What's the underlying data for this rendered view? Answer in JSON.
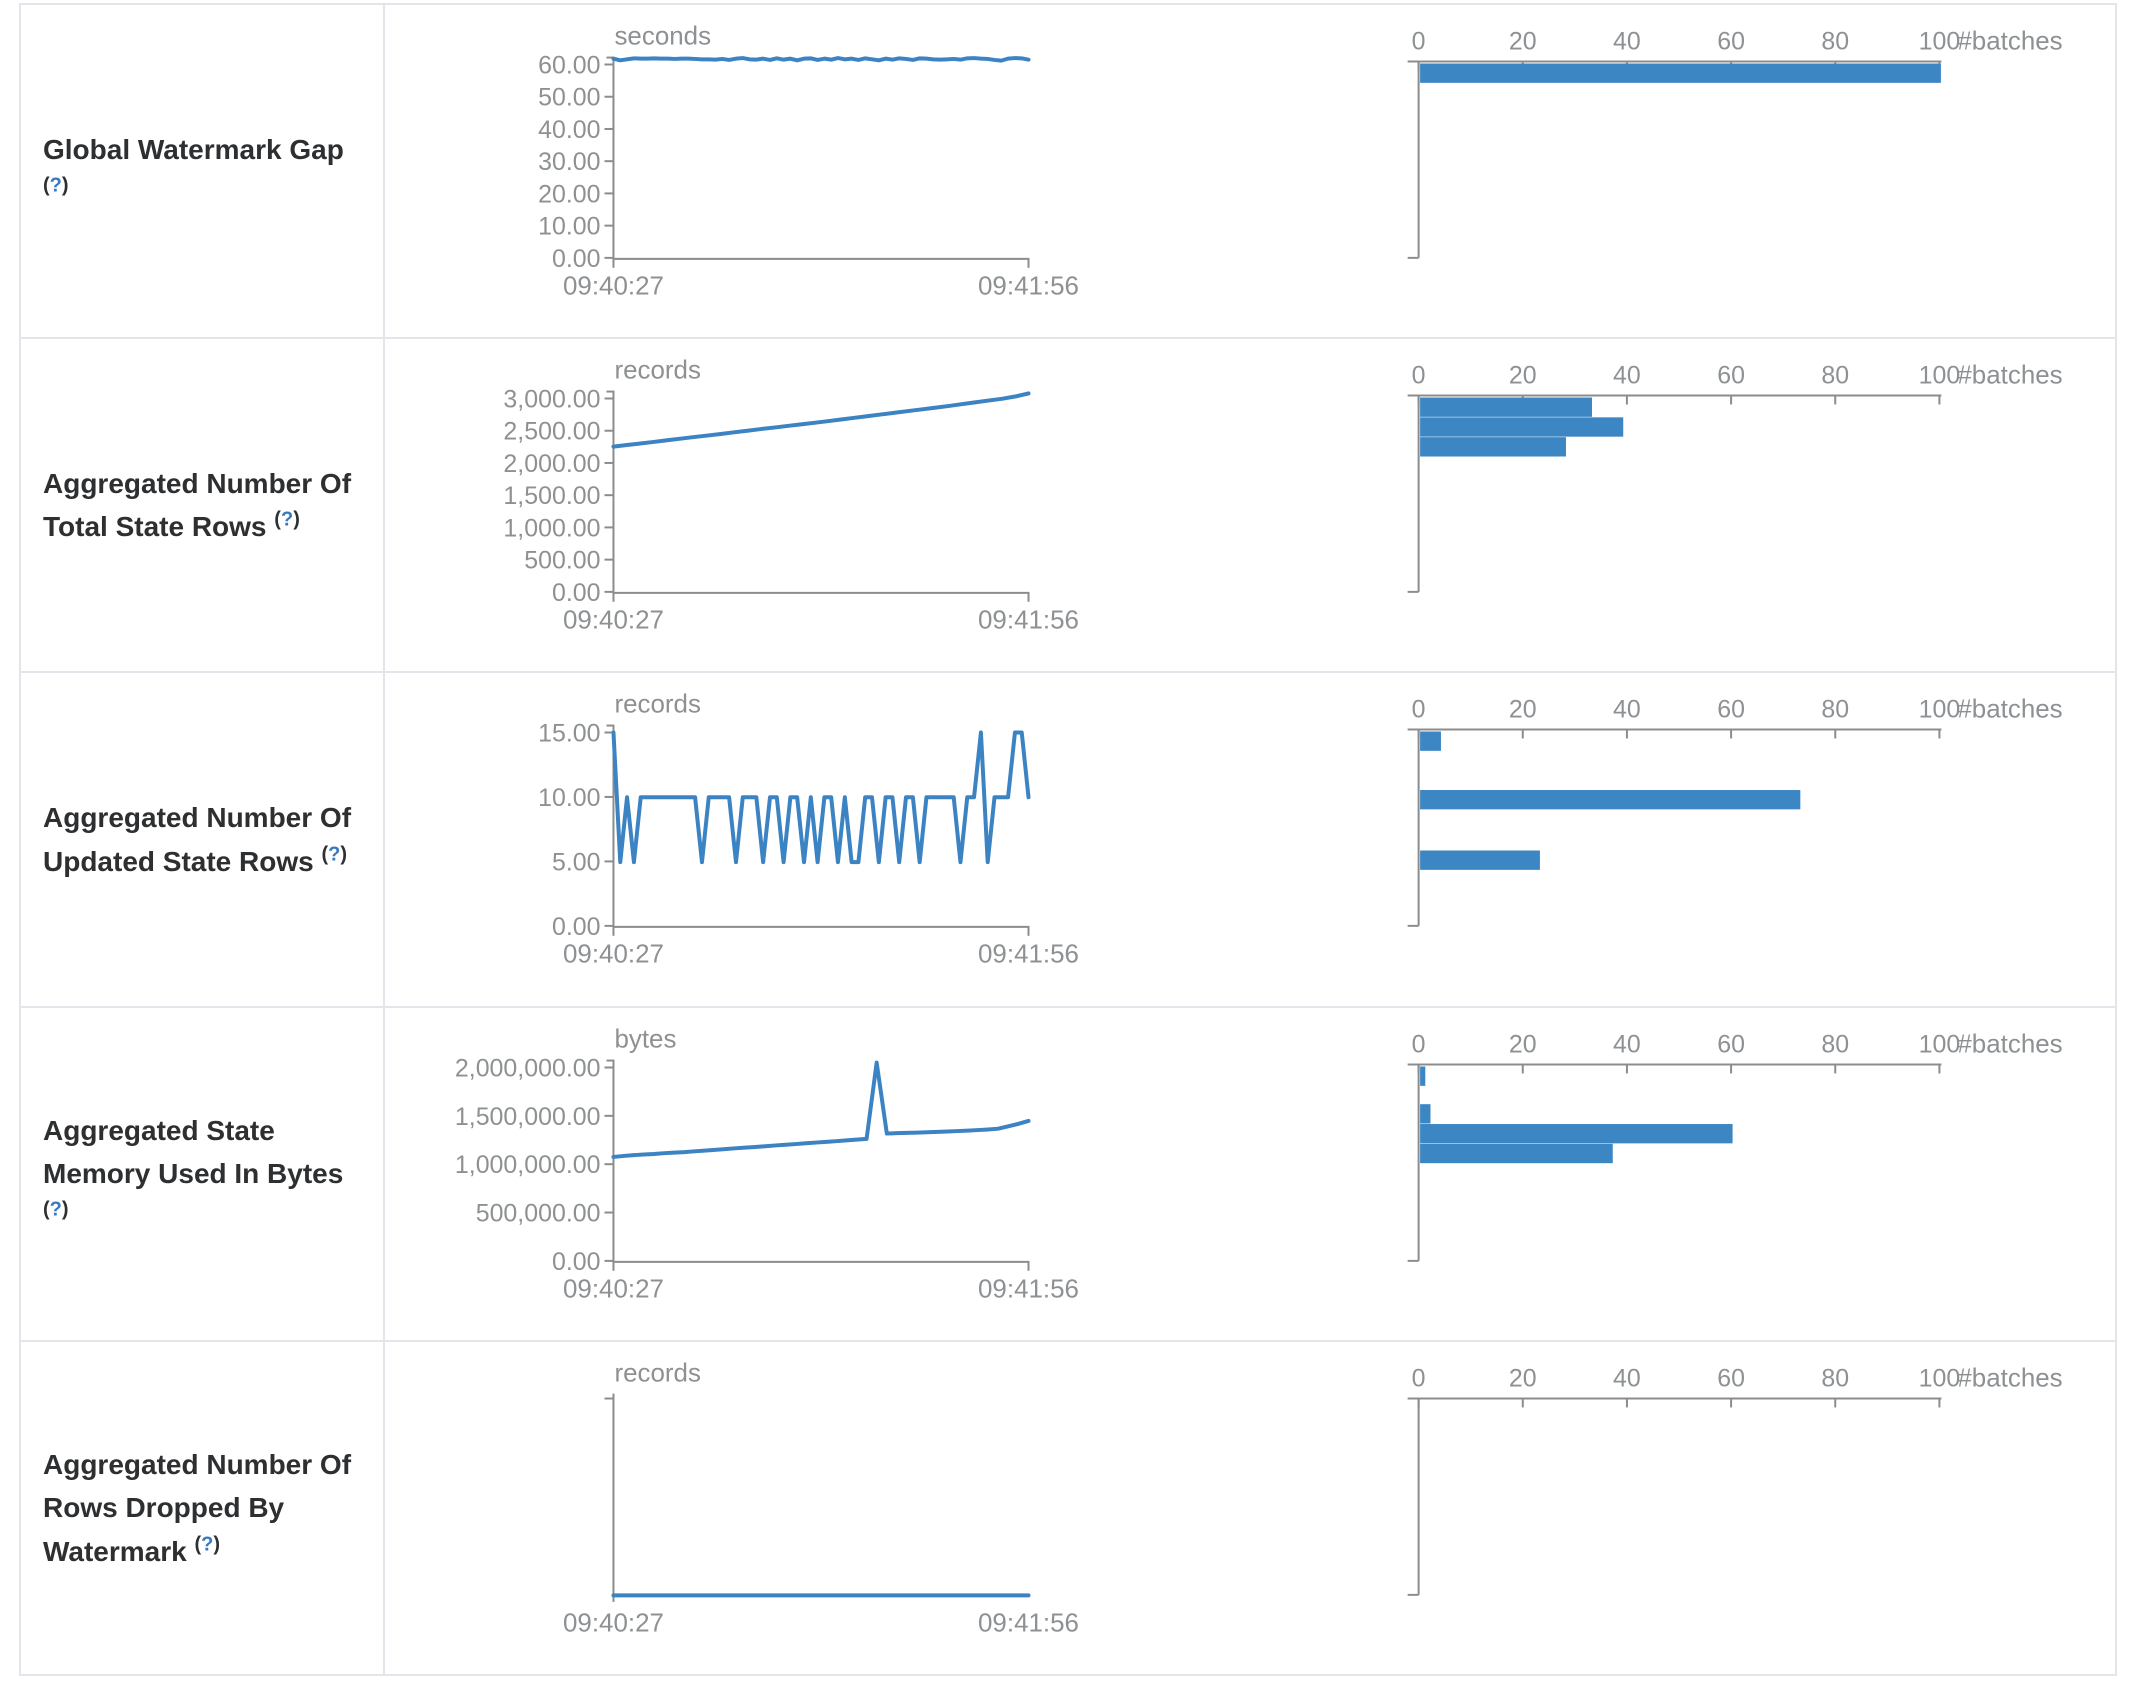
{
  "axis_color": "#8c8c8c",
  "line_color": "#3b83c2",
  "bar_color": "#3d86c4",
  "help_color": "#3779c0",
  "chart_data": [
    {
      "label": "Global Watermark Gap",
      "help_open": "(",
      "help_icon": "?",
      "help_close": ")",
      "timeline": {
        "type": "line",
        "unit": "seconds",
        "y_ticks": [
          "60.00",
          "50.00",
          "40.00",
          "30.00",
          "20.00",
          "10.00",
          "0.00"
        ],
        "y_max": 60,
        "x_start_label": "09:40:27",
        "x_end_label": "09:41:56",
        "values": [
          61.8,
          61.3,
          61.6,
          61.9,
          61.8,
          61.8,
          61.9,
          61.8,
          61.8,
          61.7,
          61.8,
          61.8,
          61.7,
          61.6,
          61.6,
          61.5,
          61.7,
          61.4,
          61.8,
          62.0,
          61.6,
          61.5,
          61.8,
          61.4,
          61.9,
          61.5,
          61.8,
          61.3,
          61.8,
          61.9,
          61.4,
          61.8,
          61.5,
          62.0,
          61.6,
          61.8,
          61.4,
          61.9,
          61.6,
          61.3,
          61.8,
          61.5,
          61.9,
          61.7,
          61.4,
          61.9,
          61.8,
          61.6,
          61.5,
          61.6,
          61.7,
          61.5,
          61.9,
          62.0,
          61.8,
          61.7,
          61.4,
          61.2,
          61.8,
          62.0,
          61.9,
          61.5
        ]
      },
      "histogram": {
        "type": "bar",
        "x_ticks": [
          "0",
          "20",
          "40",
          "60",
          "80",
          "100"
        ],
        "x_max": 100,
        "axis_label": "#batches",
        "bars": [
          {
            "bin": "~61 seconds",
            "count": 100,
            "top_frac": 0
          }
        ]
      }
    },
    {
      "label": "Aggregated Number Of Total State Rows",
      "help_open": "(",
      "help_icon": "?",
      "help_close": ")",
      "timeline": {
        "type": "line",
        "unit": "records",
        "y_ticks": [
          "3,000.00",
          "2,500.00",
          "2,000.00",
          "1,500.00",
          "1,000.00",
          "500.00",
          "0.00"
        ],
        "y_max": 3000,
        "x_start_label": "09:40:27",
        "x_end_label": "09:41:56",
        "values": [
          2258,
          2282,
          2305,
          2330,
          2356,
          2380,
          2404,
          2428,
          2452,
          2478,
          2503,
          2528,
          2552,
          2576,
          2600,
          2625,
          2650,
          2676,
          2702,
          2728,
          2754,
          2780,
          2806,
          2832,
          2858,
          2884,
          2912,
          2940,
          2968,
          2996,
          3030,
          3078
        ]
      },
      "histogram": {
        "type": "bar",
        "x_ticks": [
          "0",
          "20",
          "40",
          "60",
          "80",
          "100"
        ],
        "x_max": 100,
        "axis_label": "#batches",
        "bars": [
          {
            "bin": "~3,000 records",
            "count": 33,
            "top_frac": 0
          },
          {
            "bin": "~2,700 records",
            "count": 39,
            "top_frac": 0.102
          },
          {
            "bin": "~2,400 records",
            "count": 28,
            "top_frac": 0.204
          }
        ]
      }
    },
    {
      "label": "Aggregated Number Of Updated State Rows",
      "help_open": "(",
      "help_icon": "?",
      "help_close": ")",
      "timeline": {
        "type": "line",
        "unit": "records",
        "y_ticks": [
          "15.00",
          "10.00",
          "5.00",
          "0.00"
        ],
        "y_max": 15,
        "x_start_label": "09:40:27",
        "x_end_label": "09:41:56",
        "values": [
          15,
          5,
          10,
          5,
          10,
          10,
          10,
          10,
          10,
          10,
          10,
          10,
          10,
          5,
          10,
          10,
          10,
          10,
          5,
          10,
          10,
          10,
          5,
          10,
          10,
          5,
          10,
          10,
          5,
          10,
          5,
          10,
          10,
          5,
          10,
          5,
          5,
          10,
          10,
          5,
          10,
          10,
          5,
          10,
          10,
          5,
          10,
          10,
          10,
          10,
          10,
          5,
          10,
          10,
          15,
          5,
          10,
          10,
          10,
          15,
          15,
          10
        ]
      },
      "histogram": {
        "type": "bar",
        "x_ticks": [
          "0",
          "20",
          "40",
          "60",
          "80",
          "100"
        ],
        "x_max": 100,
        "axis_label": "#batches",
        "bars": [
          {
            "bin": "15 records",
            "count": 4,
            "top_frac": 0
          },
          {
            "bin": "10 records",
            "count": 73,
            "top_frac": 0.301
          },
          {
            "bin": "5 records",
            "count": 23,
            "top_frac": 0.612
          }
        ]
      }
    },
    {
      "label": "Aggregated State Memory Used In Bytes",
      "help_open": "(",
      "help_icon": "?",
      "help_close": ")",
      "timeline": {
        "type": "line",
        "unit": "bytes",
        "y_ticks": [
          "2,000,000.00",
          "1,500,000.00",
          "1,000,000.00",
          "500,000.00",
          "0.00"
        ],
        "y_max": 2000000,
        "x_start_label": "09:40:27",
        "x_end_label": "09:41:56",
        "values": [
          1080000,
          1090000,
          1098000,
          1105000,
          1110000,
          1118000,
          1125000,
          1130000,
          1138000,
          1145000,
          1152000,
          1160000,
          1168000,
          1175000,
          1182000,
          1190000,
          1198000,
          1205000,
          1212000,
          1220000,
          1228000,
          1235000,
          1242000,
          1250000,
          1258000,
          1265000,
          2050000,
          1320000,
          1325000,
          1328000,
          1330000,
          1334000,
          1338000,
          1342000,
          1346000,
          1350000,
          1356000,
          1362000,
          1370000,
          1395000,
          1420000,
          1450000
        ]
      },
      "histogram": {
        "type": "bar",
        "x_ticks": [
          "0",
          "20",
          "40",
          "60",
          "80",
          "100"
        ],
        "x_max": 100,
        "axis_label": "#batches",
        "bars": [
          {
            "bin": "~2,000,000 bytes",
            "count": 1,
            "top_frac": 0
          },
          {
            "bin": "~1,600,000 bytes",
            "count": 2,
            "top_frac": 0.194
          },
          {
            "bin": "~1,400,000 bytes",
            "count": 60,
            "top_frac": 0.296
          },
          {
            "bin": "~1,200,000 bytes",
            "count": 37,
            "top_frac": 0.398
          }
        ]
      }
    },
    {
      "label": "Aggregated Number Of Rows Dropped By Watermark",
      "help_open": "(",
      "help_icon": "?",
      "help_close": ")",
      "timeline": {
        "type": "line",
        "unit": "records",
        "y_ticks": [],
        "y_max": 1,
        "x_start_label": "09:40:27",
        "x_end_label": "09:41:56",
        "values": [
          0,
          0,
          0,
          0,
          0,
          0,
          0,
          0,
          0,
          0,
          0,
          0,
          0,
          0,
          0,
          0,
          0,
          0,
          0,
          0
        ]
      },
      "histogram": {
        "type": "bar",
        "x_ticks": [
          "0",
          "20",
          "40",
          "60",
          "80",
          "100"
        ],
        "x_max": 100,
        "axis_label": "#batches",
        "bars": []
      }
    }
  ]
}
